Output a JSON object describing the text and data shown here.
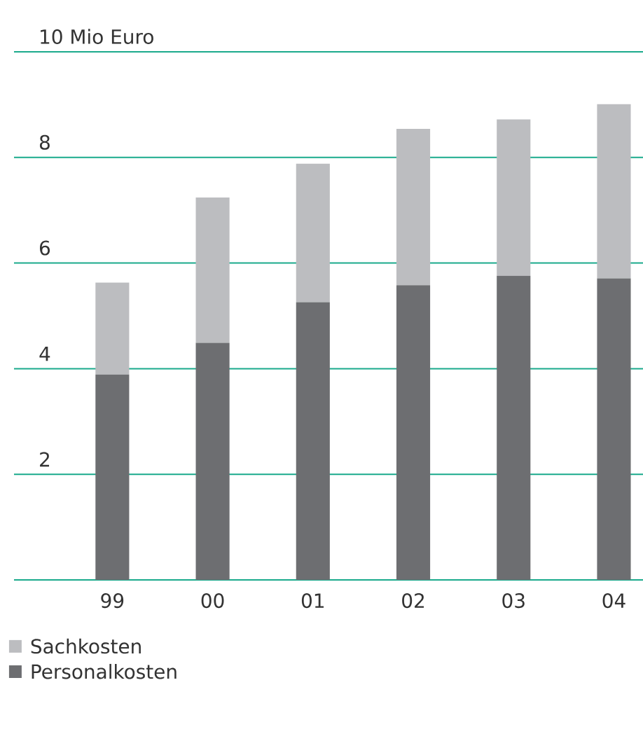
{
  "chart_data": {
    "type": "bar",
    "stacked": true,
    "categories": [
      "99",
      "00",
      "01",
      "02",
      "03",
      "04"
    ],
    "series": [
      {
        "name": "Personalkosten",
        "color": "#6d6e71",
        "values": [
          3.89,
          4.49,
          5.26,
          5.58,
          5.76,
          5.71
        ]
      },
      {
        "name": "Sachkosten",
        "color": "#bcbdc0",
        "values": [
          1.74,
          2.75,
          2.62,
          2.96,
          2.96,
          3.3
        ]
      }
    ],
    "ylim": [
      0,
      10
    ],
    "yticks": [
      {
        "value": 0,
        "label": null
      },
      2,
      4,
      6,
      8,
      {
        "value": 10,
        "label": "10 Mio Euro"
      }
    ],
    "grid": "y",
    "legend": "bottom left"
  }
}
